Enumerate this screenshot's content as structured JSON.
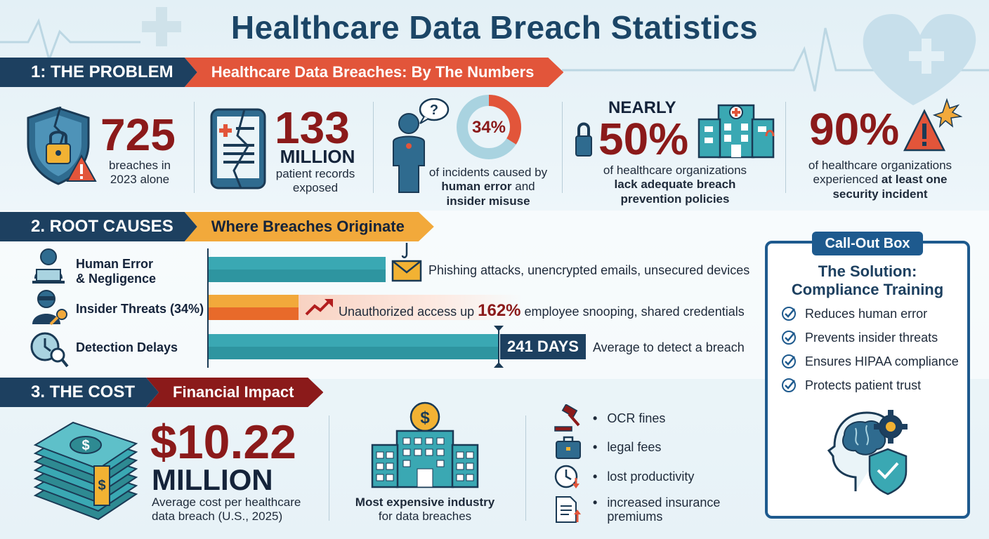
{
  "title": "Healthcare Data Breach Statistics",
  "sections": {
    "problem": {
      "label": "1: THE PROBLEM",
      "subtitle": "Healthcare Data Breaches: By The Numbers"
    },
    "root_causes": {
      "label": "2. ROOT CAUSES",
      "subtitle": "Where Breaches Originate"
    },
    "cost": {
      "label": "3. THE COST",
      "subtitle": "Financial Impact"
    }
  },
  "stats": [
    {
      "value": "725",
      "text": "breaches in 2023 alone"
    },
    {
      "value": "133",
      "unit": "MILLION",
      "text": "patient records exposed"
    },
    {
      "value": "34%",
      "text_plain": "of incidents caused by ",
      "text_bold_1": "human error",
      "text_and": " and ",
      "text_bold_2": "insider misuse"
    },
    {
      "prefix": "NEARLY",
      "value": "50%",
      "text_plain": "of healthcare organizations",
      "text_bold": "lack adequate breach prevention policies"
    },
    {
      "value": "90%",
      "text_plain": "of healthcare organizations experienced ",
      "text_bold": "at least one security incident"
    }
  ],
  "root_causes": [
    {
      "label_line1": "Human Error",
      "label_line2": "& Negligence",
      "note": "Phishing attacks, unencrypted emails, unsecured devices",
      "color": "#3aa8b3"
    },
    {
      "label": "Insider Threats (34%)",
      "note_prefix": "Unauthorized access up ",
      "note_value": "162%",
      "note_suffix": " employee snooping, shared credentials",
      "color": "#f08a2a"
    },
    {
      "label": "Detection Delays",
      "days": "241 DAYS",
      "note": "Average to detect a breach",
      "color": "#3aa8b3"
    }
  ],
  "cost": {
    "value": "$10.22",
    "unit": "MILLION",
    "text": "Average cost per healthcare data breach (U.S., 2025)",
    "industry_bold": "Most expensive industry",
    "industry_text": "for data breaches",
    "items": [
      "OCR fines",
      "legal fees",
      "lost productivity",
      "increased insurance premiums"
    ]
  },
  "callout": {
    "tag": "Call-Out Box",
    "title_line1": "The Solution:",
    "title_line2": "Compliance Training",
    "items": [
      "Reduces human error",
      "Prevents insider threats",
      "Ensures HIPAA compliance",
      "Protects patient trust"
    ]
  },
  "colors": {
    "navy": "#1d4060",
    "red_banner": "#e2553a",
    "orange_banner": "#f2a93b",
    "dark_red_banner": "#8b1a1a",
    "stat_red": "#8b1a1a",
    "teal": "#3aa8b3",
    "callout_blue": "#1e5a8e"
  }
}
